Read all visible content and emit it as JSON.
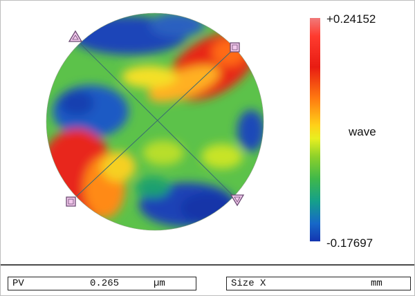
{
  "scale": {
    "max_label": "+0.24152",
    "min_label": "-0.17697",
    "unit_label": "wave"
  },
  "colormap": [
    "#f07a7a",
    "#ff3b2f",
    "#e81c12",
    "#ff7a10",
    "#ffd018",
    "#e8ef20",
    "#8ed12a",
    "#3fb84a",
    "#15a08a",
    "#1668c8",
    "#1435b0"
  ],
  "readouts": {
    "pv": {
      "label": "PV",
      "value": "0.265",
      "unit": "µm"
    },
    "size_x": {
      "label": "Size X",
      "value": "",
      "unit": "mm"
    }
  },
  "icons": [
    "triangle-marker-icon",
    "square-marker-icon"
  ]
}
